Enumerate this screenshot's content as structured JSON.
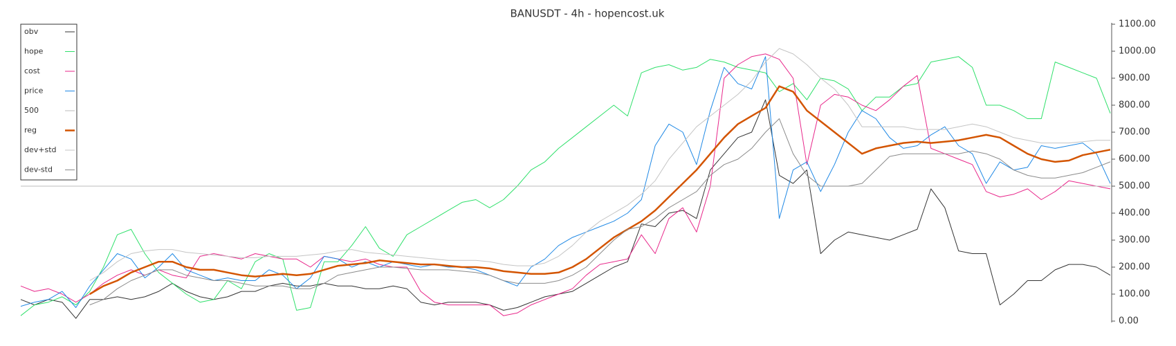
{
  "chart_data": {
    "type": "line",
    "title": "BANUSDT - 4h - hopencost.uk",
    "legend": "upper left",
    "ylim": [
      0,
      1100
    ],
    "yticks": [
      {
        "value": 0,
        "label": "0.00"
      },
      {
        "value": 100,
        "label": "100.00"
      },
      {
        "value": 200,
        "label": "200.00"
      },
      {
        "value": 300,
        "label": "300.00"
      },
      {
        "value": 400,
        "label": "400.00"
      },
      {
        "value": 500,
        "label": "500.00"
      },
      {
        "value": 600,
        "label": "600.00"
      },
      {
        "value": 700,
        "label": "700.00"
      },
      {
        "value": 800,
        "label": "800.00"
      },
      {
        "value": 900,
        "label": "900.00"
      },
      {
        "value": 1000,
        "label": "1000.00"
      },
      {
        "value": 1100,
        "label": "1100.00"
      }
    ],
    "series": [
      {
        "name": "obv",
        "color": "#333333",
        "width": 1,
        "values": [
          80,
          60,
          80,
          70,
          10,
          80,
          80,
          90,
          80,
          90,
          110,
          140,
          110,
          90,
          80,
          90,
          110,
          110,
          130,
          140,
          130,
          130,
          140,
          130,
          130,
          120,
          120,
          130,
          120,
          70,
          60,
          70,
          70,
          70,
          60,
          40,
          50,
          70,
          90,
          100,
          110,
          140,
          170,
          200,
          220,
          360,
          350,
          400,
          410,
          380,
          560,
          620,
          680,
          700,
          820,
          540,
          510,
          560,
          250,
          300,
          330,
          320,
          310,
          300,
          320,
          340,
          490,
          420,
          260,
          250,
          250,
          60,
          100,
          150,
          150,
          190,
          210,
          210,
          200,
          170
        ]
      },
      {
        "name": "hope",
        "color": "#2ee06a",
        "width": 1,
        "values": [
          20,
          60,
          70,
          90,
          60,
          110,
          200,
          320,
          340,
          250,
          180,
          140,
          100,
          70,
          80,
          150,
          120,
          220,
          250,
          230,
          40,
          50,
          220,
          220,
          280,
          350,
          270,
          240,
          320,
          350,
          380,
          410,
          440,
          450,
          420,
          450,
          500,
          560,
          590,
          640,
          680,
          720,
          760,
          800,
          760,
          920,
          940,
          950,
          930,
          940,
          970,
          960,
          940,
          930,
          920,
          850,
          880,
          820,
          900,
          890,
          860,
          780,
          830,
          830,
          870,
          880,
          960,
          970,
          980,
          940,
          800,
          800,
          780,
          750,
          750,
          960,
          940,
          920,
          900,
          770
        ]
      },
      {
        "name": "cost",
        "color": "#e8268a",
        "width": 1,
        "values": [
          130,
          110,
          120,
          100,
          70,
          100,
          140,
          170,
          190,
          170,
          190,
          170,
          160,
          240,
          250,
          240,
          230,
          250,
          240,
          230,
          230,
          200,
          240,
          230,
          220,
          230,
          210,
          200,
          200,
          110,
          70,
          60,
          60,
          60,
          60,
          20,
          30,
          60,
          80,
          100,
          120,
          170,
          210,
          220,
          230,
          320,
          250,
          380,
          420,
          330,
          500,
          900,
          950,
          980,
          990,
          970,
          900,
          580,
          800,
          840,
          830,
          800,
          780,
          820,
          870,
          910,
          640,
          620,
          600,
          580,
          480,
          460,
          470,
          490,
          450,
          480,
          520,
          510,
          500,
          490
        ]
      },
      {
        "name": "price",
        "color": "#1e88e5",
        "width": 1,
        "values": [
          55,
          70,
          80,
          110,
          50,
          130,
          190,
          250,
          230,
          160,
          200,
          250,
          190,
          170,
          150,
          160,
          150,
          150,
          190,
          170,
          120,
          160,
          240,
          230,
          200,
          220,
          200,
          220,
          210,
          200,
          210,
          200,
          200,
          190,
          170,
          150,
          130,
          200,
          230,
          280,
          310,
          330,
          350,
          370,
          400,
          450,
          650,
          730,
          700,
          580,
          780,
          940,
          880,
          860,
          980,
          380,
          560,
          590,
          480,
          580,
          700,
          780,
          750,
          680,
          640,
          650,
          690,
          720,
          650,
          620,
          510,
          590,
          560,
          570,
          650,
          640,
          650,
          660,
          620,
          510
        ]
      },
      {
        "name": "500",
        "color": "#bbbbbb",
        "width": 1,
        "values": [
          500,
          500,
          500,
          500,
          500,
          500,
          500,
          500,
          500,
          500,
          500,
          500,
          500,
          500,
          500,
          500,
          500,
          500,
          500,
          500,
          500,
          500,
          500,
          500,
          500,
          500,
          500,
          500,
          500,
          500,
          500,
          500,
          500,
          500,
          500,
          500,
          500,
          500,
          500,
          500,
          500,
          500,
          500,
          500,
          500,
          500,
          500,
          500,
          500,
          500,
          500,
          500,
          500,
          500,
          500,
          500,
          500,
          500,
          500,
          500,
          500,
          500,
          500,
          500,
          500,
          500,
          500,
          500,
          500,
          500,
          500,
          500,
          500,
          500,
          500,
          500,
          500,
          500,
          500,
          500
        ]
      },
      {
        "name": "reg",
        "color": "#d35400",
        "width": 2.5,
        "values": [
          null,
          null,
          null,
          null,
          null,
          100,
          130,
          150,
          180,
          200,
          220,
          220,
          200,
          190,
          190,
          180,
          170,
          165,
          170,
          175,
          170,
          175,
          190,
          205,
          210,
          215,
          225,
          220,
          215,
          210,
          210,
          205,
          200,
          200,
          195,
          185,
          180,
          175,
          175,
          180,
          200,
          230,
          270,
          310,
          340,
          370,
          410,
          460,
          510,
          560,
          620,
          680,
          730,
          760,
          790,
          870,
          850,
          780,
          740,
          700,
          660,
          620,
          640,
          650,
          660,
          665,
          660,
          665,
          670,
          680,
          690,
          680,
          650,
          620,
          600,
          590,
          595,
          615,
          625,
          635
        ]
      },
      {
        "name": "dev+std",
        "color": "#c4c4c4",
        "width": 1,
        "values": [
          null,
          null,
          null,
          null,
          null,
          150,
          180,
          220,
          250,
          260,
          265,
          265,
          255,
          250,
          245,
          240,
          235,
          235,
          240,
          240,
          240,
          245,
          250,
          260,
          265,
          255,
          250,
          245,
          240,
          235,
          230,
          225,
          225,
          225,
          220,
          210,
          205,
          205,
          215,
          240,
          280,
          330,
          370,
          400,
          430,
          470,
          520,
          600,
          660,
          720,
          760,
          800,
          840,
          890,
          960,
          1010,
          990,
          950,
          900,
          860,
          800,
          720,
          720,
          720,
          720,
          710,
          710,
          710,
          720,
          730,
          720,
          700,
          680,
          670,
          660,
          660,
          660,
          665,
          670,
          670
        ]
      },
      {
        "name": "dev-std",
        "color": "#8a8a8a",
        "width": 1,
        "values": [
          null,
          null,
          null,
          null,
          null,
          60,
          80,
          120,
          150,
          170,
          190,
          190,
          170,
          160,
          150,
          150,
          140,
          130,
          130,
          130,
          120,
          120,
          140,
          170,
          180,
          190,
          200,
          200,
          195,
          190,
          190,
          190,
          185,
          180,
          170,
          150,
          140,
          140,
          140,
          150,
          170,
          200,
          250,
          300,
          340,
          350,
          380,
          420,
          450,
          480,
          540,
          580,
          600,
          640,
          700,
          750,
          620,
          540,
          500,
          500,
          500,
          510,
          560,
          610,
          620,
          620,
          620,
          620,
          620,
          630,
          620,
          600,
          560,
          540,
          530,
          530,
          540,
          550,
          570,
          590
        ]
      }
    ]
  }
}
